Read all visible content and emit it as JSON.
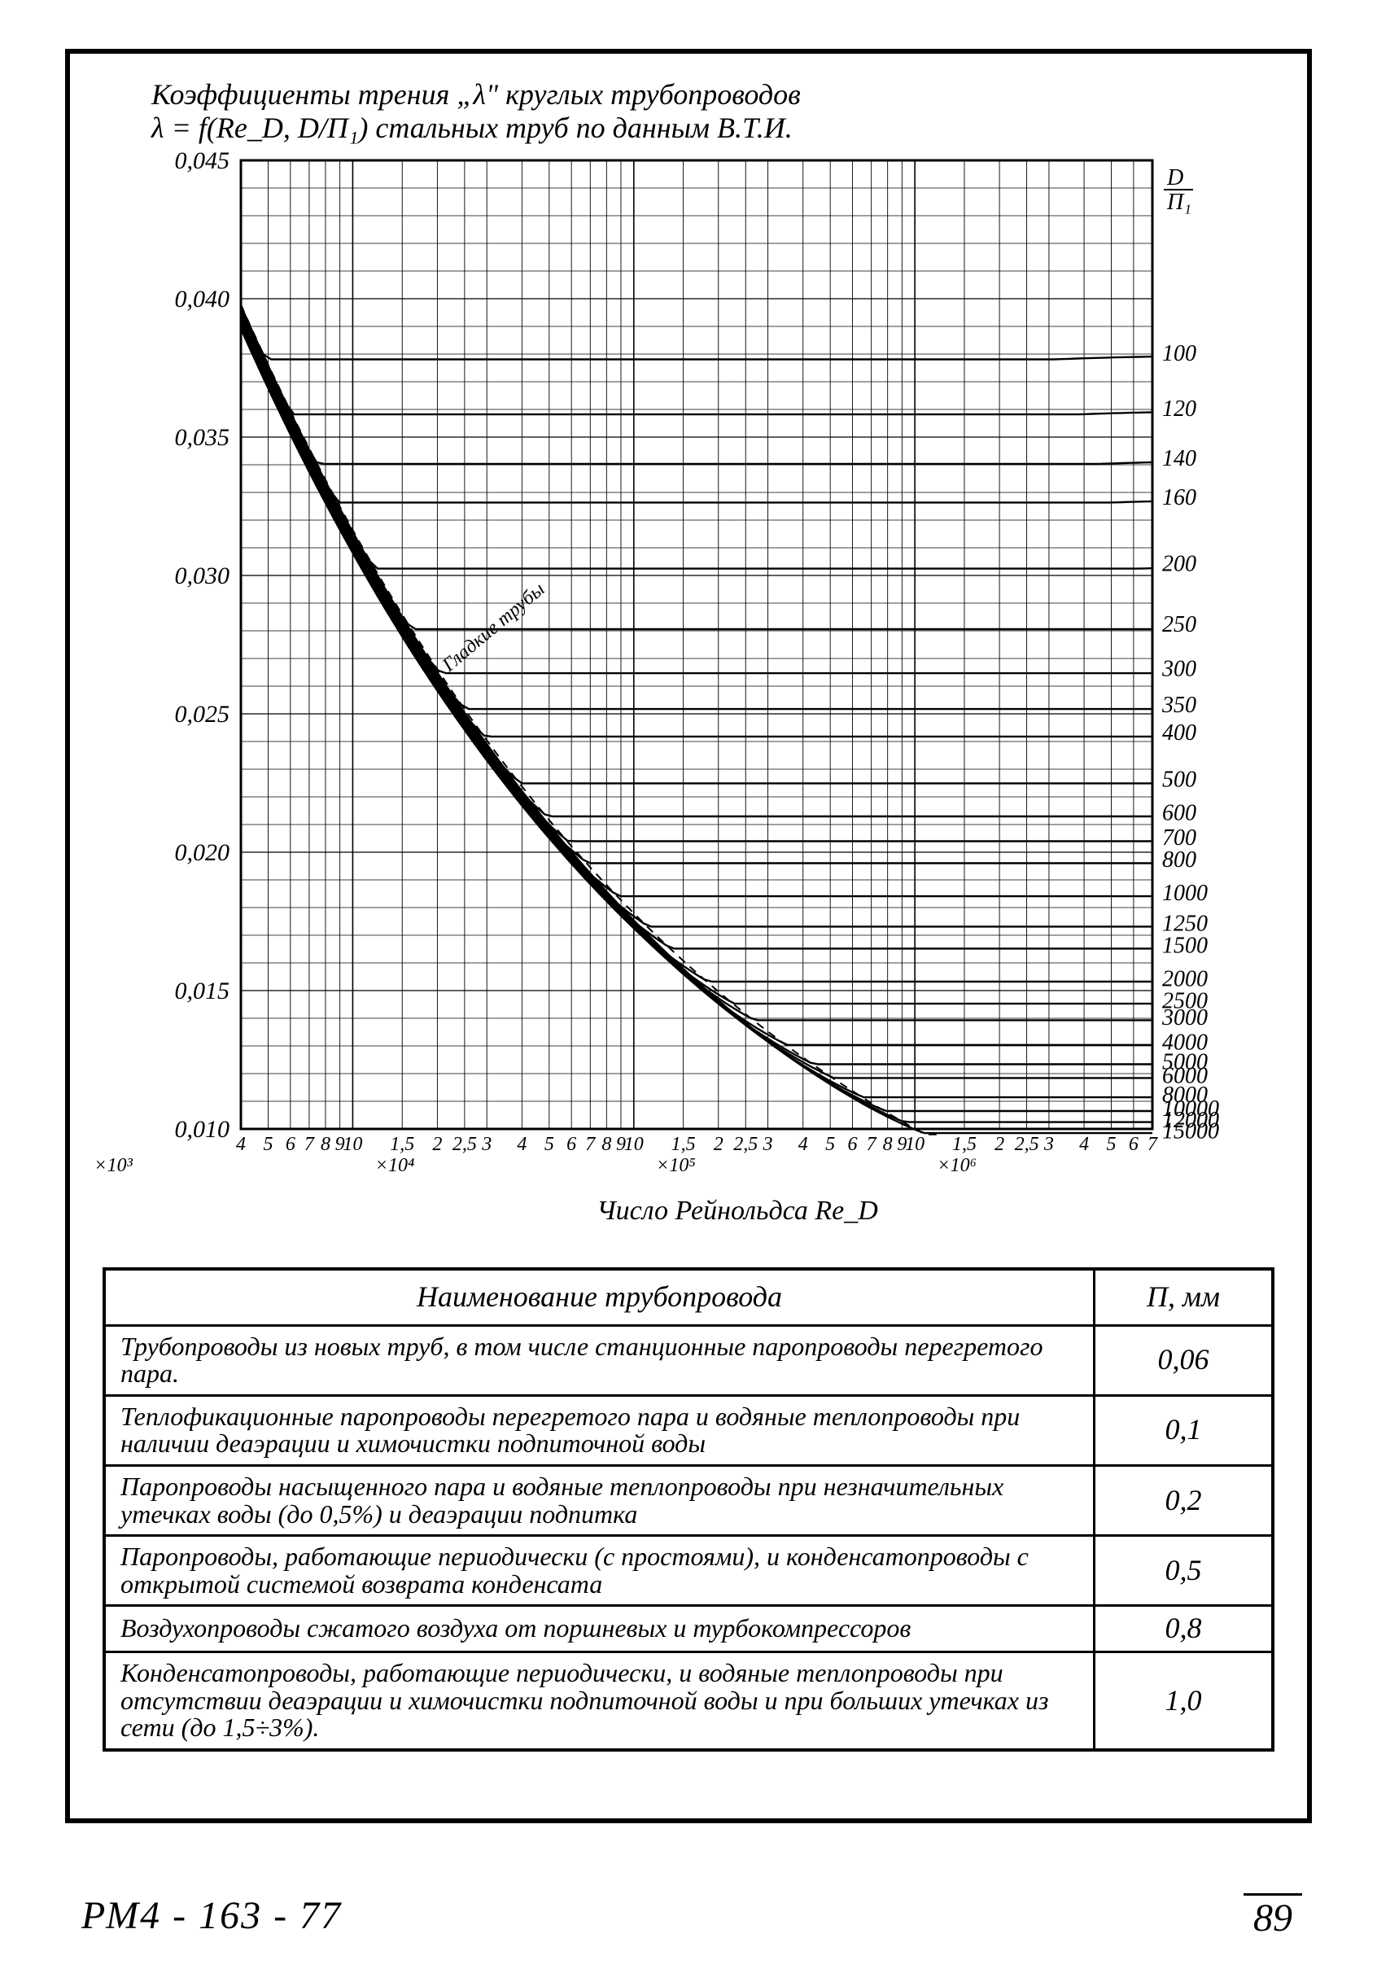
{
  "title_line1": "Коэффициенты трения „λ\" круглых трубопроводов",
  "title_line2": "λ = f(Re_D, D/П₁) стальных труб по данным В.Т.И.",
  "chart": {
    "type": "line",
    "background_color": "#ffffff",
    "grid_color": "#000000",
    "line_color": "#000000",
    "line_width": 2.4,
    "grid_line_width": 1.2,
    "y_axis": {
      "label": "",
      "ticks": [
        0.01,
        0.015,
        0.02,
        0.025,
        0.03,
        0.035,
        0.04,
        0.045
      ],
      "tick_labels": [
        "0,010",
        "0,015",
        "0,020",
        "0,025",
        "0,030",
        "0,035",
        "0,040",
        "0,045"
      ],
      "scale": "linear",
      "ylim": [
        0.01,
        0.045
      ]
    },
    "x_axis": {
      "label": "Число Рейнольдса Re_D",
      "scale": "log",
      "xlim": [
        4000,
        7000000
      ],
      "decade_markers": [
        "×10³",
        "×10⁴",
        "×10⁵",
        "×10⁶"
      ],
      "decade_positions_log10": [
        3,
        4,
        5,
        6
      ],
      "tick_values_per_decade": [
        4,
        5,
        6,
        7,
        8,
        9,
        10,
        1.5,
        2,
        2.5,
        3
      ],
      "tick_labels_sequence": [
        "4",
        "5",
        "6",
        "7",
        "8",
        "9",
        "10",
        "1,5",
        "2",
        "2,5",
        "3",
        "4",
        "5",
        "6",
        "7",
        "8",
        "9",
        "10",
        "1,5",
        "2",
        "2,5",
        "3",
        "4",
        "5",
        "6",
        "7",
        "8",
        "9",
        "10",
        "1,5",
        "2",
        "2,5",
        "3",
        "4",
        "5",
        "6",
        "7"
      ]
    },
    "right_axis": {
      "label": "D / П₁",
      "values": [
        100,
        120,
        140,
        160,
        200,
        250,
        300,
        350,
        400,
        500,
        600,
        700,
        800,
        1000,
        1250,
        1500,
        2000,
        2500,
        3000,
        4000,
        5000,
        6000,
        8000,
        10000,
        12000,
        15000
      ],
      "labels": [
        "100",
        "120",
        "140",
        "160",
        "200",
        "250",
        "300",
        "350",
        "400",
        "500",
        "600",
        "700",
        "800",
        "1000",
        "1250",
        "1500",
        "2000",
        "2500",
        "3000",
        "4000",
        "5000",
        "6000",
        "8000",
        "10000",
        "12000",
        "15000"
      ]
    },
    "curves_D_over_P1": [
      100,
      120,
      140,
      160,
      200,
      250,
      300,
      350,
      400,
      500,
      600,
      700,
      800,
      1000,
      1250,
      1500,
      2000,
      2500,
      3000,
      4000,
      5000,
      6000,
      8000,
      10000,
      12000,
      15000
    ],
    "smooth_pipe_label": "Гладкие трубы",
    "curve_start_lambda_at_Re4000": 0.04,
    "asymptote_lambda": {
      "100": 0.038,
      "120": 0.036,
      "140": 0.0342,
      "160": 0.0328,
      "200": 0.0304,
      "250": 0.0282,
      "300": 0.0266,
      "350": 0.0253,
      "400": 0.0243,
      "500": 0.0226,
      "600": 0.0214,
      "700": 0.0205,
      "800": 0.0197,
      "1000": 0.0185,
      "1250": 0.0174,
      "1500": 0.0166,
      "2000": 0.0154,
      "2500": 0.0146,
      "3000": 0.014,
      "4000": 0.0131,
      "5000": 0.0124,
      "6000": 0.0119,
      "8000": 0.0112,
      "10000": 0.0107,
      "12000": 0.0103,
      "15000": 0.0099
    }
  },
  "table": {
    "header_name": "Наименование трубопровода",
    "header_val": "П, мм",
    "rows": [
      {
        "name": "Трубопроводы из новых труб, в том числе станционные паропроводы перегретого пара.",
        "val": "0,06"
      },
      {
        "name": "Теплофикационные паропроводы перегретого пара и водяные теплопроводы при наличии деаэрации и химочистки подпиточной воды",
        "val": "0,1"
      },
      {
        "name": "Паропроводы насыщенного пара и водяные теплопроводы при незначительных утечках воды (до 0,5%) и деаэрации подпитка",
        "val": "0,2"
      },
      {
        "name": "Паропроводы, работающие периодически (с простоями), и конденсатопроводы с открытой системой возврата конденсата",
        "val": "0,5"
      },
      {
        "name": "Воздухопроводы сжатого воздуха от поршневых и турбокомпрессоров",
        "val": "0,8"
      },
      {
        "name": "Конденсатопроводы, работающие периодически, и водяные теплопроводы при отсутствии деаэрации и химочистки подпиточной воды и при больших утечках из сети (до 1,5÷3%).",
        "val": "1,0"
      }
    ]
  },
  "footer": {
    "doc": "РМ4 - 163 - 77",
    "page": "89"
  }
}
